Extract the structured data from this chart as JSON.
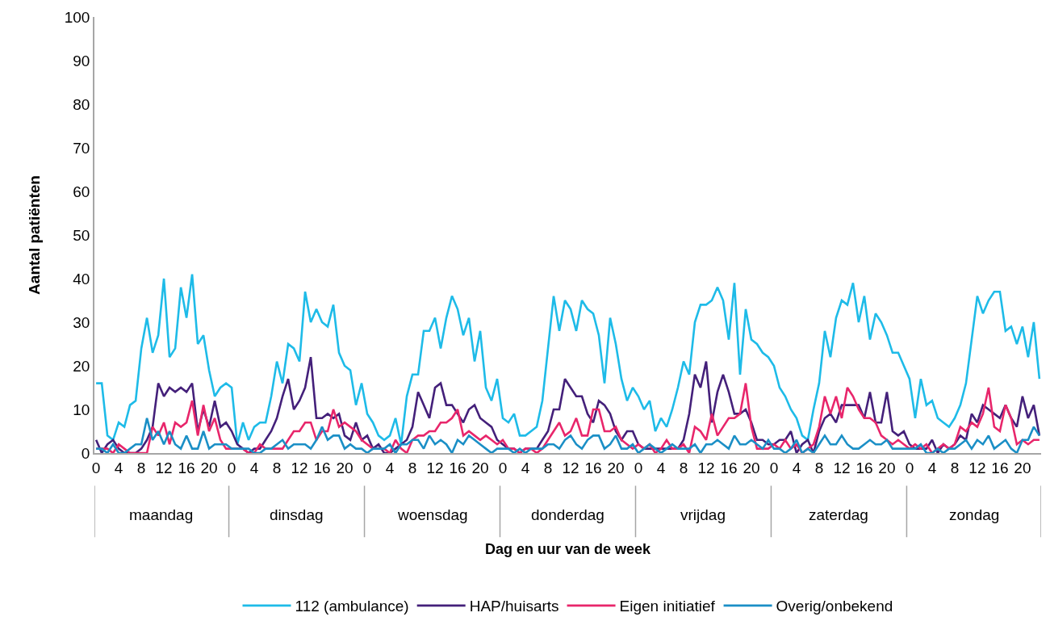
{
  "chart_data": {
    "type": "line",
    "xlabel": "Dag en uur van de week",
    "ylabel": "Aantal patiënten",
    "categories": [
      "0",
      null,
      null,
      null,
      "4",
      null,
      null,
      null,
      "8",
      null,
      null,
      null,
      "12",
      null,
      null,
      null,
      "16",
      null,
      null,
      null,
      "20",
      null,
      null,
      null,
      "0",
      null,
      null,
      null,
      "4",
      null,
      null,
      null,
      "8",
      null,
      null,
      null,
      "12",
      null,
      null,
      null,
      "16",
      null,
      null,
      null,
      "20",
      null,
      null,
      null,
      "0",
      null,
      null,
      null,
      "4",
      null,
      null,
      null,
      "8",
      null,
      null,
      null,
      "12",
      null,
      null,
      null,
      "16",
      null,
      null,
      null,
      "20",
      null,
      null,
      null,
      "0",
      null,
      null,
      null,
      "4",
      null,
      null,
      null,
      "8",
      null,
      null,
      null,
      "12",
      null,
      null,
      null,
      "16",
      null,
      null,
      null,
      "20",
      null,
      null,
      null,
      "0",
      null,
      null,
      null,
      "4",
      null,
      null,
      null,
      "8",
      null,
      null,
      null,
      "12",
      null,
      null,
      null,
      "16",
      null,
      null,
      null,
      "20",
      null,
      null,
      null,
      "0",
      null,
      null,
      null,
      "4",
      null,
      null,
      null,
      "8",
      null,
      null,
      null,
      "12",
      null,
      null,
      null,
      "16",
      null,
      null,
      null,
      "20",
      null,
      null,
      null,
      "0",
      null,
      null,
      null,
      "4",
      null,
      null,
      null,
      "8",
      null,
      null,
      null,
      "12",
      null,
      null,
      null,
      "16",
      null,
      null,
      null,
      "20",
      null,
      null,
      null
    ],
    "annotations": [
      "maandag",
      "dinsdag",
      "woensdag",
      "donderdag",
      "vrijdag",
      "zaterdag",
      "zondag"
    ],
    "series": [
      {
        "name": "112 (ambulance)",
        "color": "#1ebbe8",
        "values": [
          16,
          16,
          4,
          3,
          7,
          6,
          11,
          12,
          24,
          31,
          23,
          27,
          40,
          22,
          24,
          38,
          31,
          41,
          25,
          27,
          19,
          13,
          15,
          16,
          15,
          2,
          7,
          3,
          6,
          7,
          7,
          13,
          21,
          16,
          25,
          24,
          21,
          37,
          30,
          33,
          30,
          29,
          34,
          23,
          20,
          19,
          11,
          16,
          9,
          7,
          4,
          3,
          4,
          8,
          2,
          13,
          18,
          18,
          28,
          28,
          31,
          24,
          31,
          36,
          33,
          27,
          31,
          21,
          28,
          15,
          12,
          17,
          8,
          7,
          9,
          4,
          4,
          5,
          6,
          12,
          24,
          36,
          28,
          35,
          33,
          28,
          35,
          33,
          32,
          27,
          16,
          31,
          25,
          17,
          12,
          15,
          13,
          10,
          12,
          5,
          8,
          6,
          10,
          15,
          21,
          18,
          30,
          34,
          34,
          35,
          38,
          35,
          26,
          39,
          18,
          33,
          26,
          25,
          23,
          22,
          20,
          15,
          13,
          10,
          8,
          4,
          3,
          10,
          16,
          28,
          22,
          31,
          35,
          34,
          39,
          30,
          36,
          26,
          32,
          30,
          27,
          23,
          23,
          20,
          17,
          8,
          17,
          11,
          12,
          8,
          7,
          6,
          8,
          11,
          16,
          26,
          36,
          32,
          35,
          37,
          37,
          28,
          29,
          25,
          29,
          22,
          30,
          17
        ]
      },
      {
        "name": "HAP/huisarts",
        "color": "#44207a",
        "values": [
          3,
          0,
          2,
          3,
          1,
          0,
          0,
          0,
          1,
          3,
          6,
          16,
          13,
          15,
          14,
          15,
          14,
          16,
          5,
          10,
          6,
          12,
          6,
          7,
          5,
          2,
          1,
          0,
          1,
          1,
          3,
          5,
          8,
          13,
          17,
          10,
          12,
          15,
          22,
          8,
          8,
          9,
          8,
          9,
          4,
          3,
          7,
          3,
          4,
          1,
          2,
          0,
          0,
          1,
          2,
          3,
          6,
          14,
          11,
          8,
          15,
          16,
          11,
          11,
          9,
          7,
          10,
          11,
          8,
          7,
          6,
          3,
          2,
          1,
          1,
          0,
          1,
          1,
          1,
          3,
          5,
          10,
          10,
          17,
          15,
          13,
          13,
          9,
          7,
          12,
          11,
          9,
          5,
          3,
          5,
          5,
          2,
          1,
          1,
          1,
          1,
          1,
          1,
          1,
          3,
          9,
          18,
          15,
          21,
          7,
          14,
          18,
          14,
          9,
          9,
          10,
          7,
          3,
          3,
          2,
          2,
          3,
          3,
          5,
          0,
          2,
          3,
          0,
          5,
          8,
          9,
          7,
          11,
          11,
          11,
          11,
          8,
          14,
          7,
          7,
          14,
          5,
          4,
          5,
          2,
          1,
          1,
          1,
          3,
          0,
          2,
          1,
          2,
          4,
          3,
          9,
          7,
          11,
          10,
          9,
          8,
          11,
          8,
          6,
          13,
          8,
          11,
          4
        ]
      },
      {
        "name": "Eigen initiatief",
        "color": "#e8266b",
        "values": [
          1,
          1,
          1,
          0,
          2,
          1,
          0,
          0,
          0,
          0,
          6,
          4,
          7,
          2,
          7,
          6,
          7,
          12,
          4,
          11,
          5,
          8,
          3,
          1,
          1,
          1,
          1,
          0,
          0,
          2,
          1,
          1,
          1,
          1,
          3,
          5,
          5,
          7,
          7,
          3,
          5,
          5,
          10,
          6,
          7,
          6,
          5,
          3,
          2,
          1,
          1,
          1,
          0,
          3,
          1,
          0,
          3,
          4,
          4,
          5,
          5,
          7,
          7,
          8,
          10,
          4,
          5,
          4,
          3,
          4,
          3,
          2,
          3,
          1,
          1,
          0,
          1,
          1,
          0,
          1,
          3,
          5,
          7,
          4,
          5,
          8,
          4,
          4,
          10,
          10,
          5,
          5,
          6,
          3,
          2,
          1,
          2,
          1,
          2,
          0,
          1,
          3,
          1,
          1,
          2,
          0,
          6,
          5,
          3,
          9,
          4,
          6,
          8,
          8,
          9,
          16,
          6,
          1,
          1,
          1,
          2,
          1,
          3,
          1,
          2,
          0,
          1,
          2,
          6,
          13,
          9,
          13,
          8,
          15,
          13,
          10,
          8,
          8,
          7,
          4,
          3,
          2,
          3,
          2,
          1,
          2,
          1,
          2,
          0,
          1,
          2,
          1,
          2,
          6,
          5,
          7,
          6,
          9,
          15,
          6,
          5,
          11,
          8,
          2,
          3,
          2,
          3,
          3
        ]
      },
      {
        "name": "Overig/onbekend",
        "color": "#1b8fc6",
        "values": [
          1,
          1,
          0,
          2,
          0,
          0,
          1,
          2,
          2,
          8,
          3,
          5,
          2,
          5,
          2,
          1,
          4,
          1,
          1,
          5,
          1,
          2,
          2,
          2,
          1,
          1,
          1,
          1,
          0,
          0,
          1,
          1,
          2,
          3,
          1,
          2,
          2,
          2,
          1,
          3,
          6,
          3,
          4,
          4,
          1,
          2,
          1,
          1,
          0,
          1,
          1,
          1,
          2,
          0,
          2,
          2,
          3,
          3,
          1,
          4,
          2,
          3,
          2,
          0,
          3,
          2,
          4,
          3,
          2,
          1,
          0,
          1,
          1,
          1,
          0,
          1,
          0,
          1,
          1,
          1,
          2,
          2,
          1,
          3,
          4,
          2,
          1,
          3,
          4,
          4,
          1,
          2,
          4,
          1,
          1,
          2,
          0,
          1,
          2,
          1,
          0,
          1,
          2,
          1,
          1,
          1,
          2,
          0,
          2,
          2,
          3,
          2,
          1,
          4,
          2,
          2,
          3,
          2,
          1,
          3,
          1,
          1,
          0,
          1,
          3,
          0,
          1,
          0,
          2,
          4,
          2,
          2,
          4,
          2,
          1,
          1,
          2,
          3,
          2,
          2,
          3,
          1,
          1,
          1,
          1,
          1,
          2,
          0,
          0,
          1,
          0,
          1,
          1,
          2,
          3,
          1,
          3,
          2,
          4,
          1,
          2,
          3,
          1,
          0,
          3,
          3,
          6,
          4
        ]
      }
    ],
    "ylim": [
      0,
      100
    ],
    "yticks": [
      0,
      10,
      20,
      30,
      40,
      50,
      60,
      70,
      80,
      90,
      100
    ],
    "legend": "bottom",
    "marker": "none",
    "line_style": "solid"
  }
}
